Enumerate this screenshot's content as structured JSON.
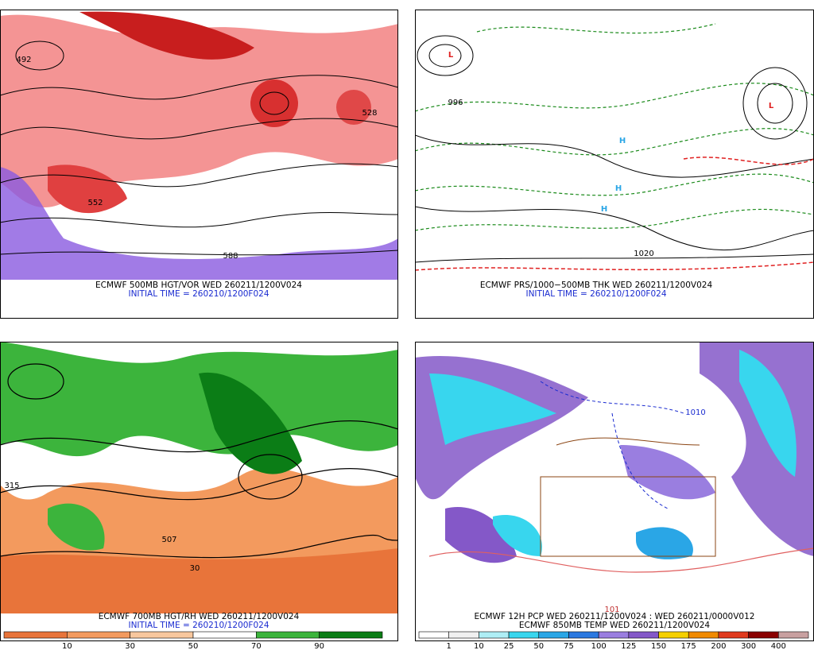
{
  "panels": [
    {
      "caption": "ECMWF 500MB HGT/VOR WED 260211/1200V024",
      "initial": "INITIAL TIME = 260210/1200F024",
      "labels": [
        "492",
        "552",
        "528",
        "588"
      ]
    },
    {
      "caption": "ECMWF PRS/1000−500MB THK WED 260211/1200V024",
      "initial": "INITIAL TIME = 260210/1200F024",
      "labels": [
        "L",
        "L",
        "H",
        "H",
        "H",
        "1020",
        "996"
      ]
    },
    {
      "caption": "ECMWF 700MB HGT/RH WED 260211/1200V024",
      "initial": "INITIAL TIME = 260210/1200F024",
      "labels": [
        "315",
        "507",
        "30"
      ],
      "colorbar": {
        "colors": [
          "#e8743a",
          "#f39a5e",
          "#f8c79d",
          "#ffffff",
          "#3cb43c",
          "#0b7d16"
        ],
        "ticks": [
          10,
          30,
          50,
          70,
          90
        ]
      }
    },
    {
      "caption": "ECMWF 12H PCP WED 260211/1200V024 : WED 260211/0000V012",
      "initial": "ECMWF 850MB TEMP WED 260211/1200V024",
      "labels": [
        "1010",
        "101"
      ],
      "colorbar": {
        "colors": [
          "#ffffff",
          "#f0f0f0",
          "#aeeef5",
          "#38d6ee",
          "#2aa6e6",
          "#2a78e0",
          "#9a7ee0",
          "#8458c8",
          "#f5d000",
          "#f08a00",
          "#e03a1e",
          "#8a0000",
          "#c8a0a0"
        ],
        "ticks": [
          1,
          10,
          25,
          50,
          75,
          100,
          125,
          150,
          175,
          200,
          300,
          400
        ]
      }
    }
  ]
}
